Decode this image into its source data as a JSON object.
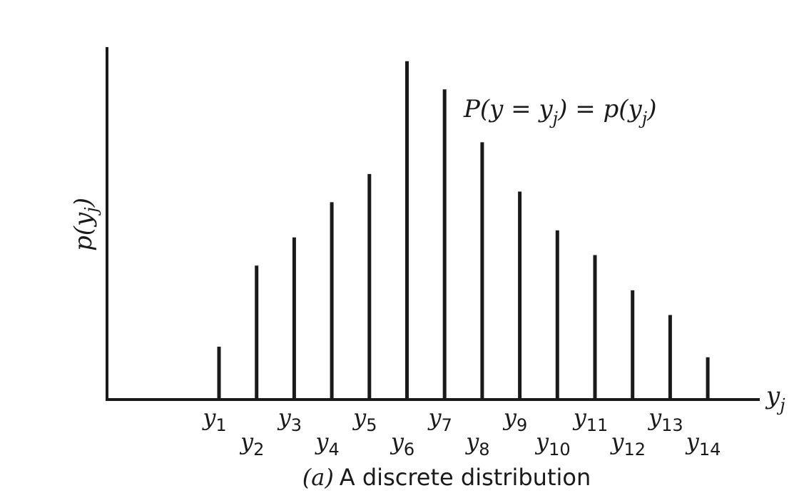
{
  "chart_data": {
    "type": "bar",
    "title": "",
    "caption_prefix": "(a)",
    "caption_text": "A discrete distribution",
    "annotation": {
      "lhs_open": "P(y = y",
      "lhs_sub": "j",
      "mid": ") = p(y",
      "rhs_sub": "j",
      "close": ")"
    },
    "ylabel": {
      "main": "p(y",
      "sub": "j",
      "close": ")"
    },
    "xlabel": {
      "main": "y",
      "sub": "j"
    },
    "tick_labels": [
      {
        "main": "y",
        "sub": "1"
      },
      {
        "main": "y",
        "sub": "2"
      },
      {
        "main": "y",
        "sub": "3"
      },
      {
        "main": "y",
        "sub": "4"
      },
      {
        "main": "y",
        "sub": "5"
      },
      {
        "main": "y",
        "sub": "6"
      },
      {
        "main": "y",
        "sub": "7"
      },
      {
        "main": "y",
        "sub": "8"
      },
      {
        "main": "y",
        "sub": "9"
      },
      {
        "main": "y",
        "sub": "10"
      },
      {
        "main": "y",
        "sub": "11"
      },
      {
        "main": "y",
        "sub": "12"
      },
      {
        "main": "y",
        "sub": "13"
      },
      {
        "main": "y",
        "sub": "14"
      }
    ],
    "values": [
      15,
      38,
      46,
      56,
      64,
      96,
      88,
      73,
      59,
      48,
      41,
      31,
      24,
      12
    ],
    "ylim": [
      0,
      100
    ],
    "grid": false,
    "legend": false,
    "bar_color": "#1a1a1a"
  }
}
